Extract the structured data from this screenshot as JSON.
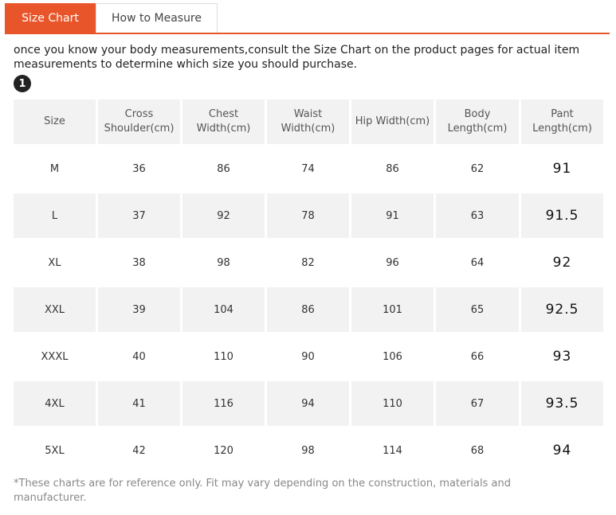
{
  "tabs": {
    "size_chart": "Size Chart",
    "how_to_measure": "How to Measure"
  },
  "intro_text": "once you know your body measurements,consult the Size Chart on the product pages for actual item measurements to determine which size you should purchase.",
  "step_number": "1",
  "table": {
    "headers": [
      "Size",
      "Cross Shoulder(cm)",
      "Chest Width(cm)",
      "Waist Width(cm)",
      "Hip Width(cm)",
      "Body Length(cm)",
      "Pant Length(cm)"
    ],
    "rows": [
      [
        "M",
        "36",
        "86",
        "74",
        "86",
        "62",
        "91"
      ],
      [
        "L",
        "37",
        "92",
        "78",
        "91",
        "63",
        "91.5"
      ],
      [
        "XL",
        "38",
        "98",
        "82",
        "96",
        "64",
        "92"
      ],
      [
        "XXL",
        "39",
        "104",
        "86",
        "101",
        "65",
        "92.5"
      ],
      [
        "XXXL",
        "40",
        "110",
        "90",
        "106",
        "66",
        "93"
      ],
      [
        "4XL",
        "41",
        "116",
        "94",
        "110",
        "67",
        "93.5"
      ],
      [
        "5XL",
        "42",
        "120",
        "98",
        "114",
        "68",
        "94"
      ]
    ]
  },
  "footnote": "*These charts are for reference only. Fit may vary depending on the construction, materials and manufacturer.",
  "colors": {
    "accent": "#e8552a",
    "cell_shade": "#f2f2f2"
  }
}
